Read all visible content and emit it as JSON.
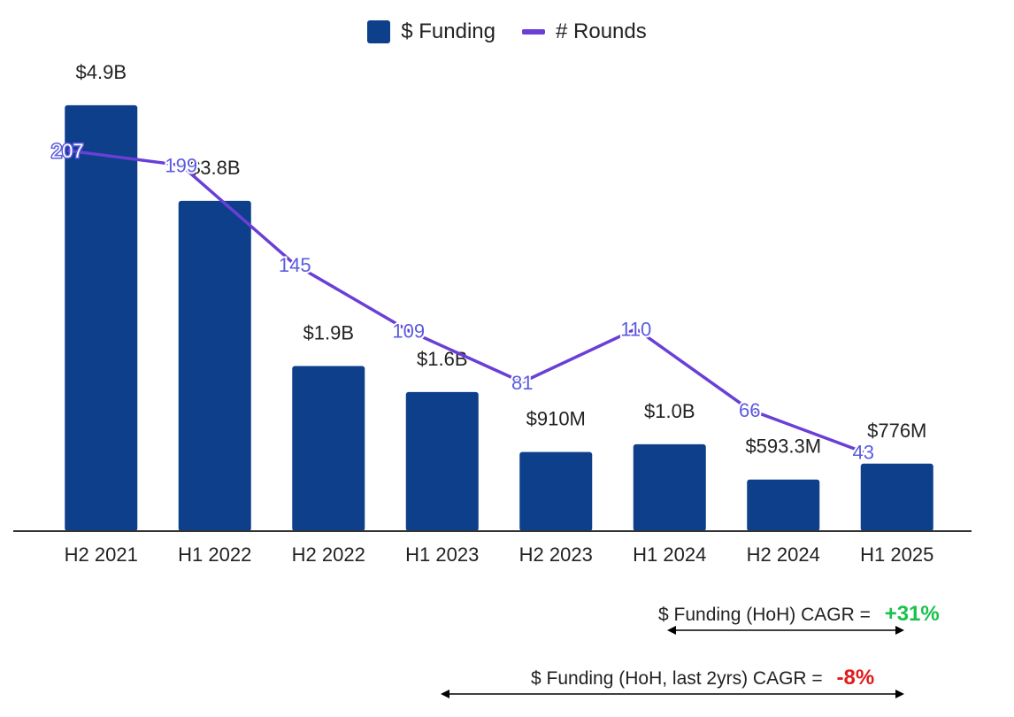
{
  "colors": {
    "bar": "#0d3f8a",
    "line": "#6a3fd6",
    "line_label": "#5b5be0",
    "axis": "#333333",
    "positive": "#19c24a",
    "negative": "#e11b1b"
  },
  "legend": {
    "funding": "$ Funding",
    "rounds": "# Rounds"
  },
  "chart_data": {
    "type": "bar",
    "categories": [
      "H2 2021",
      "H1 2022",
      "H2 2022",
      "H1 2023",
      "H2 2023",
      "H1 2024",
      "H2 2024",
      "H1 2025"
    ],
    "series": [
      {
        "name": "$ Funding",
        "type": "bar",
        "values": [
          4.9,
          3.8,
          1.9,
          1.6,
          0.91,
          1.0,
          0.5933,
          0.776
        ],
        "labels": [
          "$4.9B",
          "$3.8B",
          "$1.9B",
          "$1.6B",
          "$910M",
          "$1.0B",
          "$593.3M",
          "$776M"
        ]
      },
      {
        "name": "# Rounds",
        "type": "line",
        "values": [
          207,
          199,
          145,
          109,
          81,
          110,
          66,
          43
        ]
      }
    ],
    "ylim": [
      0,
      5.5
    ],
    "y2lim": [
      0,
      260
    ],
    "legend_position": "top-center",
    "grid": false
  },
  "annotations": {
    "cagr_all": {
      "label": "$ Funding (HoH) CAGR =",
      "value": "+31%"
    },
    "cagr_2yr": {
      "label": "$ Funding (HoH, last 2yrs) CAGR =",
      "value": "-8%"
    }
  }
}
